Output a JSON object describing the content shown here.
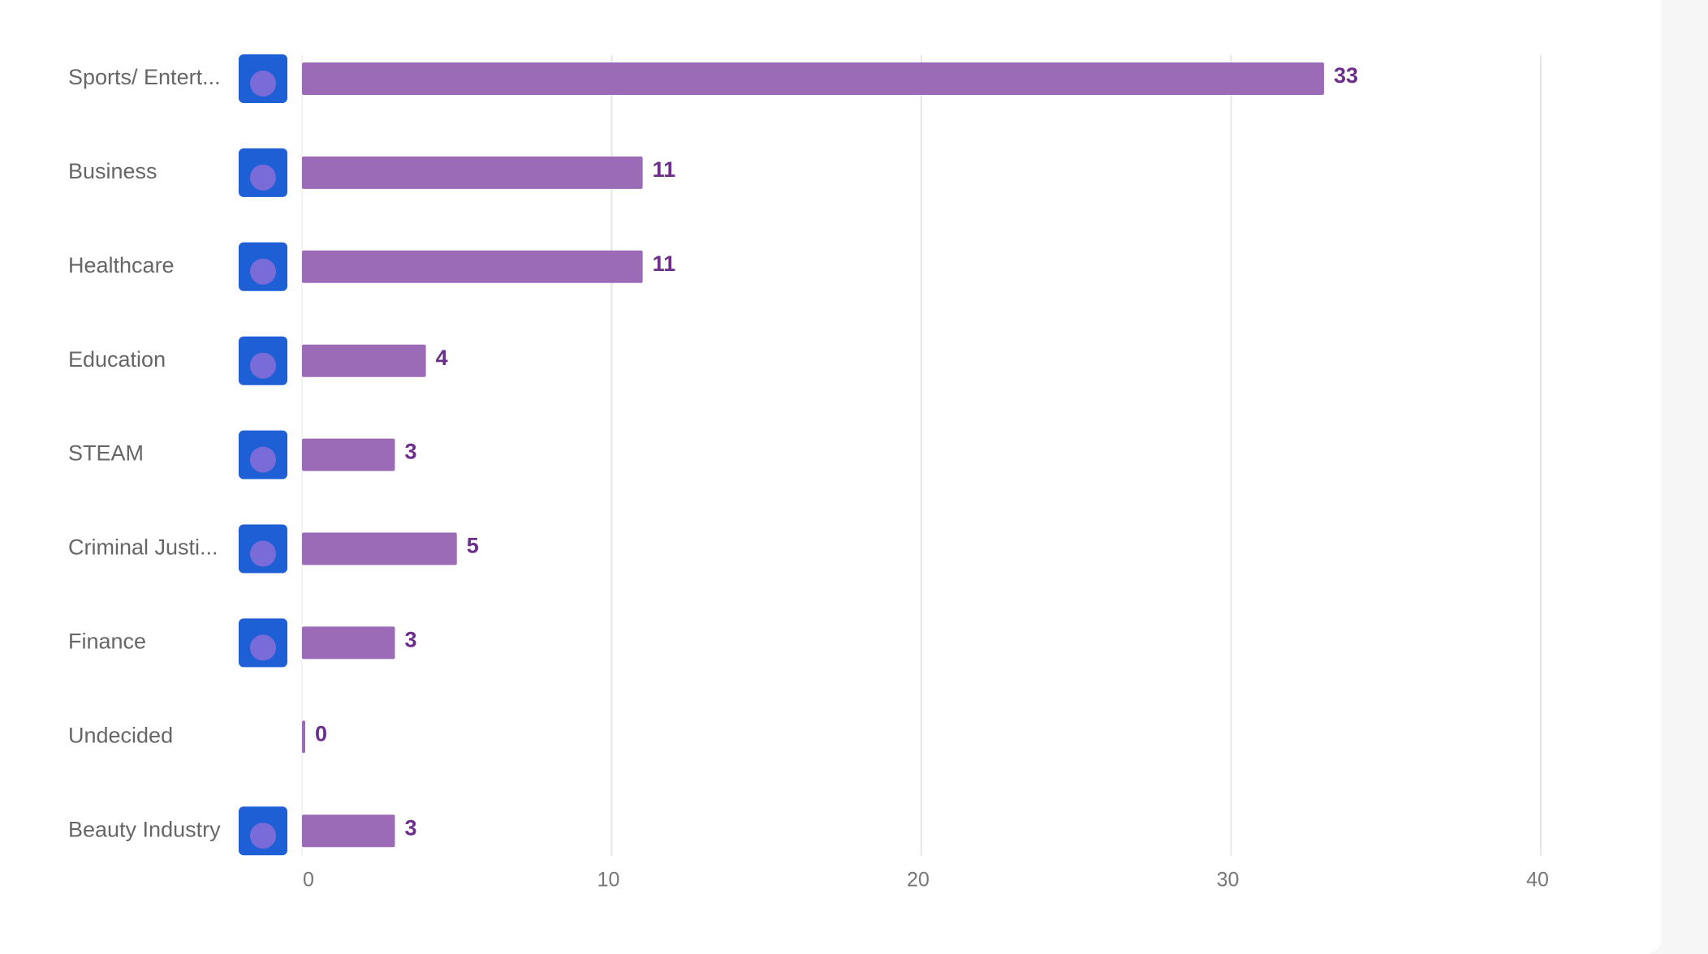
{
  "chart_data": {
    "type": "bar",
    "orientation": "horizontal",
    "categories": [
      "Sports/ Entert...",
      "Business",
      "Healthcare",
      "Education",
      "STEAM",
      "Criminal Justi...",
      "Finance",
      "Undecided",
      "Beauty Industry"
    ],
    "values": [
      33,
      11,
      11,
      4,
      3,
      5,
      3,
      0,
      3
    ],
    "color": "#9b6bb7",
    "label_color": "#6b2f8a",
    "xlim": [
      0,
      40
    ],
    "xticks": [
      0,
      10,
      20,
      30,
      40
    ],
    "grid": true
  }
}
